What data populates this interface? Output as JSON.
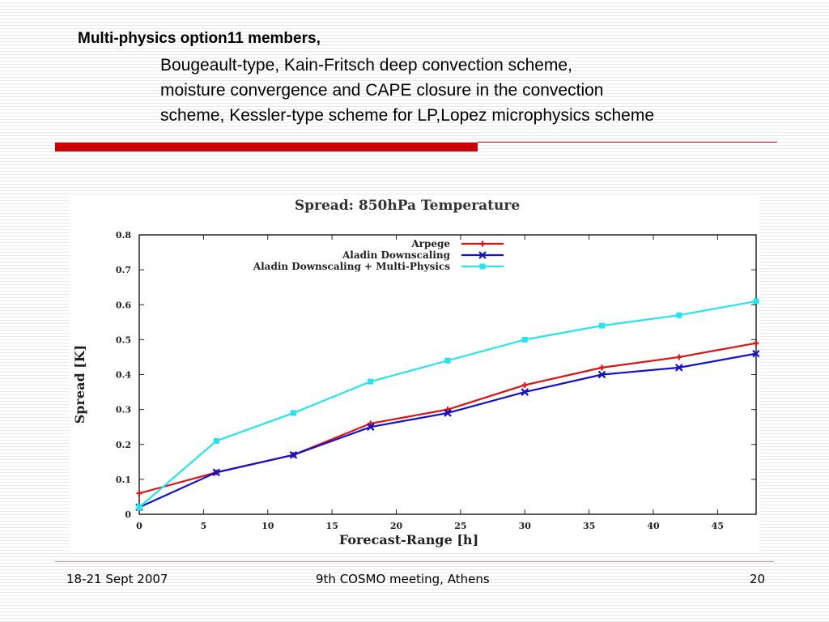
{
  "slide": {
    "heading": "Multi-physics option11 members,",
    "description_lines": [
      "Bougeault-type, Kain-Fritsch deep convection scheme,",
      "moisture convergence and CAPE closure in the convection",
      "scheme, Kessler-type scheme for LP,Lopez microphysics scheme"
    ],
    "accent_color": "#cc0000",
    "footer": {
      "date": "18-21 Sept 2007",
      "event": "9th COSMO meeting, Athens",
      "page_number": "20"
    }
  },
  "chart_data": {
    "type": "line",
    "title": "Spread: 850hPa Temperature",
    "xlabel": "Forecast-Range [h]",
    "ylabel": "Spread [K]",
    "xlim": [
      0,
      48
    ],
    "ylim": [
      0,
      0.8
    ],
    "xticks": [
      "0",
      "5",
      "10",
      "15",
      "20",
      "25",
      "30",
      "35",
      "40",
      "45"
    ],
    "yticks": [
      "0",
      "0.1",
      "0.2",
      "0.3",
      "0.4",
      "0.5",
      "0.6",
      "0.7",
      "0.8"
    ],
    "x": [
      0,
      6,
      12,
      18,
      24,
      30,
      36,
      42,
      48
    ],
    "grid": false,
    "legend_position": "top-right",
    "series": [
      {
        "name": "Arpege",
        "color": "#dd1111",
        "marker": "plus",
        "values": [
          0.06,
          0.12,
          0.17,
          0.26,
          0.3,
          0.37,
          0.42,
          0.45,
          0.49
        ]
      },
      {
        "name": "Aladin Downscaling",
        "color": "#1111cc",
        "marker": "cross",
        "values": [
          0.02,
          0.12,
          0.17,
          0.25,
          0.29,
          0.35,
          0.4,
          0.42,
          0.46
        ]
      },
      {
        "name": "Aladin Downscaling + Multi-Physics",
        "color": "#22e5f0",
        "marker": "square",
        "values": [
          0.02,
          0.21,
          0.29,
          0.38,
          0.44,
          0.5,
          0.54,
          0.57,
          0.61
        ]
      }
    ]
  }
}
